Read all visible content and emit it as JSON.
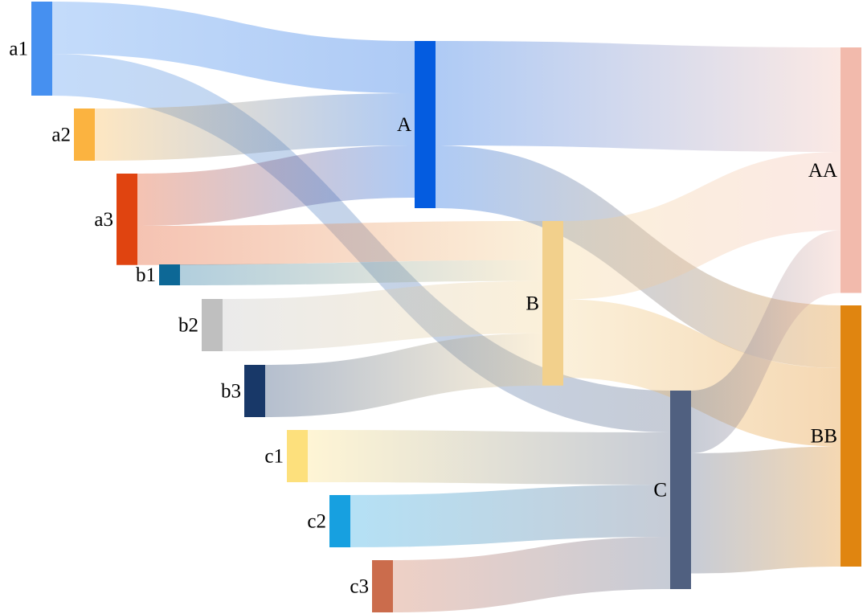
{
  "chart_data": {
    "type": "sankey",
    "nodes": [
      {
        "id": "a1",
        "label": "a1",
        "color": "#4690F0"
      },
      {
        "id": "a2",
        "label": "a2",
        "color": "#FBB340"
      },
      {
        "id": "a3",
        "label": "a3",
        "color": "#E04410"
      },
      {
        "id": "b1",
        "label": "b1",
        "color": "#0D6896"
      },
      {
        "id": "b2",
        "label": "b2",
        "color": "#BFBFBF"
      },
      {
        "id": "b3",
        "label": "b3",
        "color": "#183868"
      },
      {
        "id": "c1",
        "label": "c1",
        "color": "#FDE07C"
      },
      {
        "id": "c2",
        "label": "c2",
        "color": "#17A0E0"
      },
      {
        "id": "c3",
        "label": "c3",
        "color": "#CB6C4C"
      },
      {
        "id": "A",
        "label": "A",
        "color": "#045CE0"
      },
      {
        "id": "B",
        "label": "B",
        "color": "#F2D08C"
      },
      {
        "id": "C",
        "label": "C",
        "color": "#506080"
      },
      {
        "id": "AA",
        "label": "AA",
        "color": "#F2BAAC"
      },
      {
        "id": "BB",
        "label": "BB",
        "color": "#E08510"
      }
    ],
    "links": [
      {
        "source": "a1",
        "target": "A",
        "value": 2
      },
      {
        "source": "a1",
        "target": "C",
        "value": 1.6
      },
      {
        "source": "a2",
        "target": "A",
        "value": 2
      },
      {
        "source": "a3",
        "target": "A",
        "value": 2
      },
      {
        "source": "a3",
        "target": "B",
        "value": 1.5
      },
      {
        "source": "b1",
        "target": "B",
        "value": 0.8
      },
      {
        "source": "b2",
        "target": "B",
        "value": 2
      },
      {
        "source": "b3",
        "target": "B",
        "value": 2
      },
      {
        "source": "c1",
        "target": "C",
        "value": 2
      },
      {
        "source": "c2",
        "target": "C",
        "value": 2
      },
      {
        "source": "c3",
        "target": "C",
        "value": 2
      },
      {
        "source": "A",
        "target": "AA",
        "value": 4
      },
      {
        "source": "A",
        "target": "BB",
        "value": 2.4
      },
      {
        "source": "B",
        "target": "AA",
        "value": 3
      },
      {
        "source": "B",
        "target": "BB",
        "value": 3
      },
      {
        "source": "C",
        "target": "AA",
        "value": 2.4
      },
      {
        "source": "C",
        "target": "BB",
        "value": 4.6
      }
    ]
  }
}
